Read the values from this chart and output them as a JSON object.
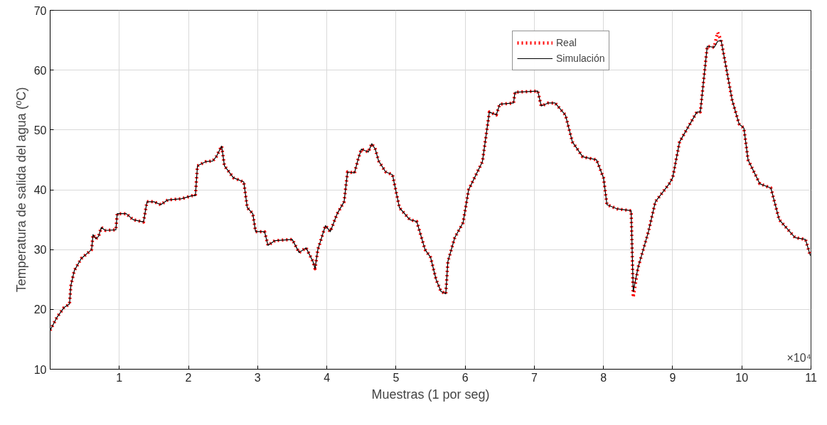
{
  "chart_data": {
    "type": "line",
    "xlabel": "Muestras (1 por seg)",
    "ylabel": "Temperatura de salida del agua (ºC)",
    "annotations": [
      "×10⁴"
    ],
    "xlim": [
      0,
      11
    ],
    "ylim": [
      10,
      70
    ],
    "xticks": [
      1,
      2,
      3,
      4,
      5,
      6,
      7,
      8,
      9,
      10,
      11
    ],
    "yticks": [
      10,
      20,
      30,
      40,
      50,
      60,
      70
    ],
    "grid": true,
    "legend": "top right",
    "x": [
      0,
      0.1,
      0.2,
      0.28,
      0.3,
      0.35,
      0.45,
      0.55,
      0.6,
      0.62,
      0.66,
      0.7,
      0.74,
      0.8,
      0.95,
      0.97,
      1.1,
      1.2,
      1.35,
      1.4,
      1.5,
      1.6,
      1.7,
      1.9,
      2.05,
      2.1,
      2.13,
      2.25,
      2.35,
      2.4,
      2.48,
      2.52,
      2.65,
      2.8,
      2.85,
      2.93,
      2.97,
      3.1,
      3.15,
      3.25,
      3.5,
      3.6,
      3.7,
      3.8,
      3.83,
      3.87,
      3.98,
      4.05,
      4.15,
      4.25,
      4.3,
      4.4,
      4.45,
      4.5,
      4.6,
      4.65,
      4.7,
      4.75,
      4.85,
      4.95,
      5.05,
      5.2,
      5.3,
      5.42,
      5.5,
      5.58,
      5.65,
      5.72,
      5.75,
      5.85,
      5.97,
      6.05,
      6.25,
      6.35,
      6.45,
      6.5,
      6.7,
      6.72,
      7.05,
      7.1,
      7.2,
      7.3,
      7.45,
      7.55,
      7.7,
      7.9,
      8.0,
      8.05,
      8.2,
      8.4,
      8.43,
      8.5,
      8.65,
      8.75,
      8.95,
      9.0,
      9.1,
      9.35,
      9.4,
      9.5,
      9.6,
      9.65,
      9.7,
      9.78,
      9.86,
      9.96,
      10.03,
      10.09,
      10.26,
      10.42,
      10.54,
      10.77,
      10.92,
      10.99
    ],
    "series": [
      {
        "name": "Real",
        "color": "#ff0000",
        "line_style": "dotted",
        "values": [
          16.5,
          18.7,
          20.3,
          20.9,
          24,
          26.5,
          28.5,
          29.5,
          30,
          32.5,
          31.8,
          32.2,
          33.7,
          33.2,
          33.3,
          36,
          36,
          35,
          34.6,
          38,
          38,
          37.5,
          38.3,
          38.5,
          39,
          39,
          44,
          44.7,
          44.8,
          45.5,
          47.3,
          44,
          42,
          41.3,
          37,
          36,
          33,
          33,
          30.7,
          31.5,
          31.7,
          29.5,
          30.3,
          28,
          26.8,
          30,
          34,
          33,
          36,
          38,
          43,
          42.8,
          45,
          46.8,
          46.3,
          47.7,
          46.8,
          44.8,
          43,
          42.5,
          37,
          35,
          34.7,
          30,
          28.7,
          25,
          23,
          22.6,
          28,
          32,
          34.5,
          40,
          44.7,
          53,
          52.5,
          54.3,
          54.5,
          56.3,
          56.5,
          54,
          54.5,
          54.5,
          52.5,
          48,
          45.5,
          45,
          42,
          37.5,
          36.8,
          36.5,
          22,
          27,
          33,
          38,
          41,
          42,
          48,
          53,
          53,
          64,
          63.8,
          66.3,
          65,
          60,
          55,
          51,
          50.3,
          45,
          41,
          40.3,
          35,
          32,
          31.7,
          29
        ]
      },
      {
        "name": "Simulación",
        "color": "#000000",
        "line_style": "solid",
        "values": [
          16.5,
          18.7,
          20.3,
          20.9,
          24,
          26.5,
          28.5,
          29.5,
          30,
          32.5,
          31.8,
          32.2,
          33.7,
          33.2,
          33.3,
          36,
          36,
          35,
          34.6,
          38,
          38,
          37.5,
          38.3,
          38.5,
          39,
          39,
          44,
          44.7,
          44.8,
          45.5,
          47.3,
          44,
          42,
          41.3,
          37,
          36,
          33,
          33,
          30.7,
          31.5,
          31.7,
          29.5,
          30.3,
          28,
          26.8,
          30,
          34,
          33,
          36,
          38,
          43,
          42.8,
          45,
          46.8,
          46.3,
          47.7,
          46.8,
          44.8,
          43,
          42.5,
          37,
          35,
          34.7,
          30,
          28.7,
          25,
          23,
          22.6,
          28,
          32,
          34.5,
          40,
          44.7,
          53,
          52.5,
          54.3,
          54.5,
          56.3,
          56.5,
          54,
          54.5,
          54.5,
          52.5,
          48,
          45.5,
          45,
          42,
          37.5,
          36.8,
          36.5,
          23,
          27,
          33,
          38,
          41,
          42,
          48,
          53,
          53,
          64,
          63.8,
          64.8,
          65,
          60,
          55,
          51,
          50.3,
          45,
          41,
          40.3,
          35,
          32,
          31.7,
          29
        ]
      }
    ]
  }
}
